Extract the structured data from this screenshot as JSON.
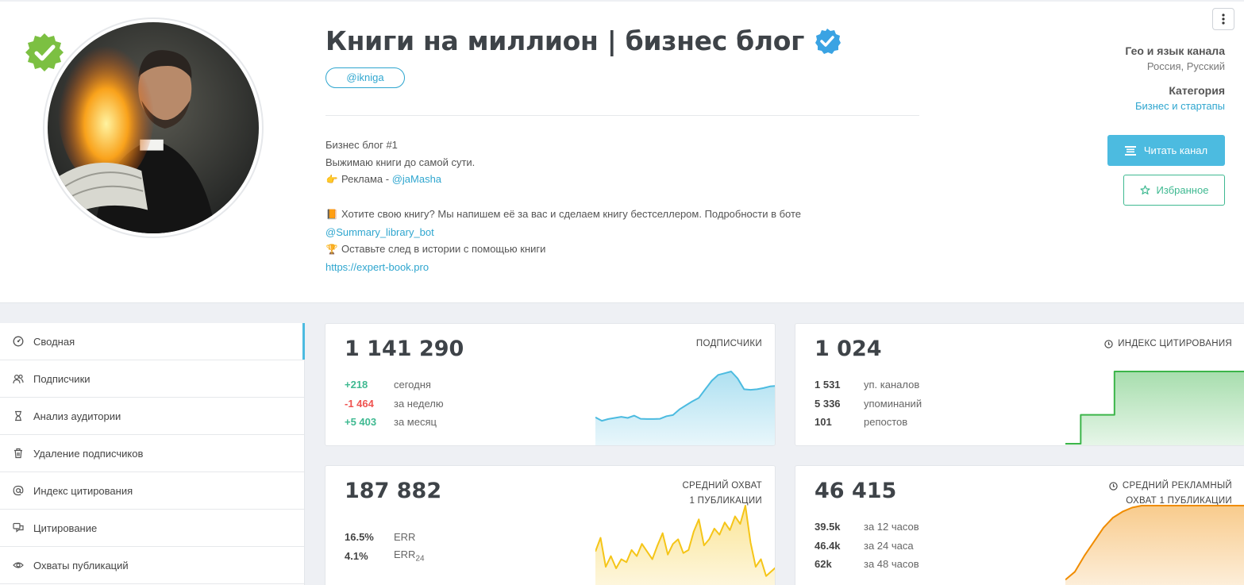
{
  "channel": {
    "title": "Книги на миллион | бизнес блог",
    "handle": "@ikniga",
    "description": [
      {
        "text": "Бизнес блог #1"
      },
      {
        "text": "Выжимаю книги до самой сути."
      },
      {
        "emoji": "👉",
        "text": "Реклама - ",
        "link": "@jaMasha"
      },
      {
        "text": ""
      },
      {
        "emoji": "📙",
        "text": "Хотите свою книгу? Мы напишем её за вас и сделаем книгу бестселлером. Подробности в боте"
      },
      {
        "link": "@Summary_library_bot"
      },
      {
        "emoji": "🏆",
        "text": "Оставьте след в истории с помощью книги"
      },
      {
        "link": "https://expert-book.pro"
      }
    ]
  },
  "meta": {
    "geo_label": "Гео и язык канала",
    "geo_value": "Россия, Русский",
    "category_label": "Категория",
    "category_value": "Бизнес и стартапы"
  },
  "actions": {
    "read_label": "Читать канал",
    "favorite_label": "Избранное"
  },
  "sidebar": {
    "items": [
      {
        "label": "Сводная",
        "icon": "dashboard-icon",
        "active": true
      },
      {
        "label": "Подписчики",
        "icon": "users-icon"
      },
      {
        "label": "Анализ аудитории",
        "icon": "hourglass-icon"
      },
      {
        "label": "Удаление подписчиков",
        "icon": "trash-icon"
      },
      {
        "label": "Индекс цитирования",
        "icon": "at-icon"
      },
      {
        "label": "Цитирование",
        "icon": "quote-icon"
      },
      {
        "label": "Охваты публикаций",
        "icon": "eye-icon"
      }
    ]
  },
  "cards": {
    "subscribers": {
      "value": "1 141 290",
      "caption": "ПОДПИСЧИКИ",
      "rows": [
        {
          "value": "+218",
          "label": "сегодня",
          "tone": "pos"
        },
        {
          "value": "-1 464",
          "label": "за неделю",
          "tone": "neg"
        },
        {
          "value": "+5 403",
          "label": "за месяц",
          "tone": "pos"
        }
      ],
      "color": "#4cbbe0"
    },
    "citation": {
      "value": "1 024",
      "caption": "ИНДЕКС ЦИТИРОВАНИЯ",
      "rows": [
        {
          "value": "1 531",
          "label": "уп. каналов"
        },
        {
          "value": "5 336",
          "label": "упоминаний"
        },
        {
          "value": "101",
          "label": "репостов"
        }
      ],
      "color": "#3cb54a"
    },
    "reach": {
      "value": "187 882",
      "caption_line1": "СРЕДНИЙ ОХВАТ",
      "caption_line2": "1 ПУБЛИКАЦИИ",
      "rows": [
        {
          "value": "16.5%",
          "label": "ERR"
        },
        {
          "value": "4.1%",
          "label": "ERR",
          "sub": "24"
        }
      ],
      "color": "#f5c518"
    },
    "ad_reach": {
      "value": "46 415",
      "caption_line1": "СРЕДНИЙ РЕКЛАМНЫЙ",
      "caption_line2": "ОХВАТ 1 ПУБЛИКАЦИИ",
      "rows": [
        {
          "value": "39.5k",
          "label": "за 12 часов"
        },
        {
          "value": "46.4k",
          "label": "за 24 часа"
        },
        {
          "value": "62k",
          "label": "за 48 часов"
        }
      ],
      "color": "#f08c00"
    }
  },
  "sparklines": {
    "subscribers": [
      92,
      80,
      86,
      90,
      94,
      90,
      98,
      87,
      86,
      86,
      87,
      96,
      100,
      120,
      134,
      148,
      160,
      190,
      220,
      240,
      246,
      252,
      228,
      190,
      188,
      190,
      194,
      200,
      202
    ],
    "citation": [
      0,
      0,
      0,
      0,
      0,
      38,
      38,
      38,
      38,
      38,
      38,
      38,
      38,
      38,
      38,
      38,
      95,
      95,
      95,
      95,
      95,
      95,
      95,
      95,
      95,
      95,
      95,
      95,
      95,
      95,
      95,
      95,
      95,
      95,
      95,
      95,
      95,
      95,
      95,
      95,
      95,
      95,
      95,
      95,
      95,
      95,
      95,
      95,
      95,
      95,
      95,
      95,
      95,
      95,
      95,
      95,
      95,
      95,
      95,
      95
    ],
    "reach": [
      50,
      68,
      30,
      44,
      28,
      40,
      36,
      52,
      44,
      60,
      50,
      40,
      58,
      74,
      46,
      60,
      66,
      48,
      52,
      76,
      92,
      58,
      66,
      80,
      72,
      88,
      78,
      96,
      86,
      110,
      62,
      30,
      40,
      18,
      24,
      30
    ],
    "ad_reach": [
      10,
      18,
      34,
      48,
      62,
      72,
      78,
      82,
      84,
      84,
      84,
      84,
      84,
      84,
      84,
      84,
      84,
      84,
      84,
      84
    ]
  }
}
